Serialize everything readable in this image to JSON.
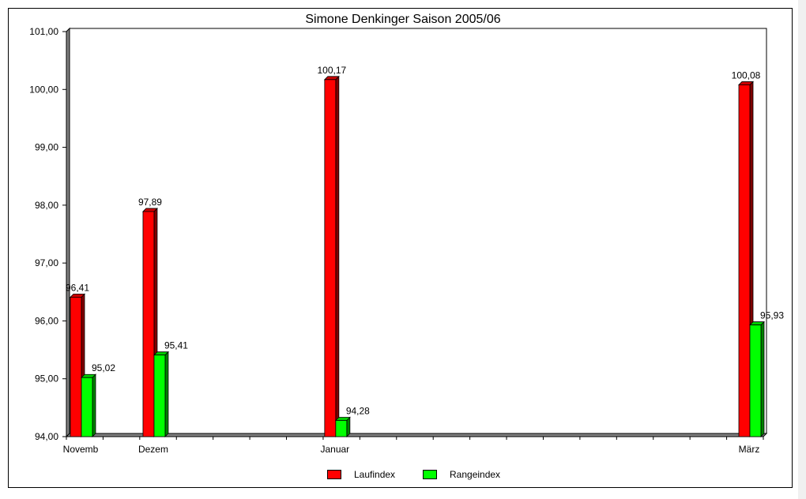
{
  "chart_data": {
    "type": "bar",
    "title": "Simone Denkinger Saison 2005/06",
    "categories": [
      "Novemb",
      "Dezem",
      "Januar",
      "März"
    ],
    "series": [
      {
        "name": "Laufindex",
        "color": "#ff0000",
        "values": [
          96.41,
          97.89,
          100.17,
          100.08
        ],
        "labels": [
          "96,41",
          "97,89",
          "100,17",
          "100,08"
        ]
      },
      {
        "name": "Rangeindex",
        "color": "#00ff00",
        "values": [
          95.02,
          95.41,
          94.28,
          95.93
        ],
        "labels": [
          "95,02",
          "95,41",
          "94,28",
          "95,93"
        ]
      }
    ],
    "ylim": [
      94,
      101
    ],
    "yticks": [
      "94,00",
      "95,00",
      "96,00",
      "97,00",
      "98,00",
      "99,00",
      "100,00",
      "101,00"
    ],
    "xlabel": "",
    "ylabel": "",
    "legend": "bottom",
    "grid": false
  }
}
